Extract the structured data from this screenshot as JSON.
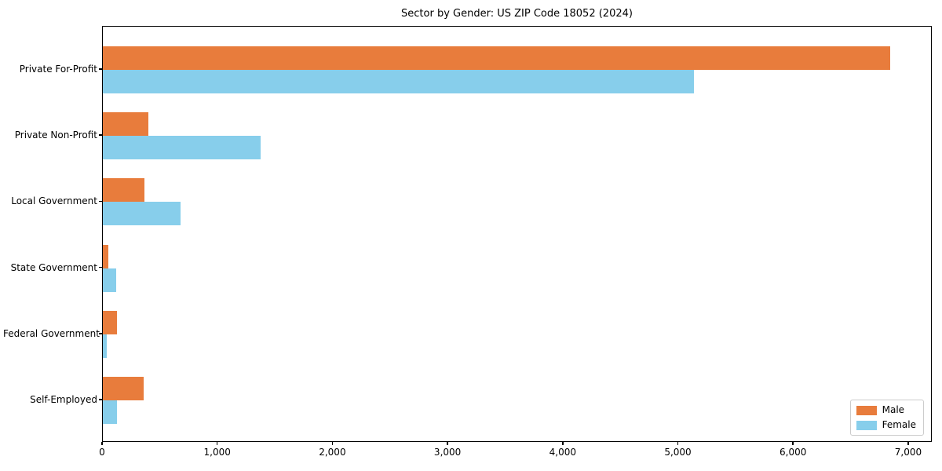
{
  "chart_data": {
    "type": "bar",
    "orientation": "horizontal",
    "title": "Sector by Gender: US ZIP Code 18052 (2024)",
    "categories": [
      "Private For-Profit",
      "Private Non-Profit",
      "Local Government",
      "State Government",
      "Federal Government",
      "Self-Employed"
    ],
    "series": [
      {
        "name": "Male",
        "color": "#E87C3C",
        "values": [
          6850,
          395,
          360,
          48,
          122,
          352
        ]
      },
      {
        "name": "Female",
        "color": "#87CEEB",
        "values": [
          5140,
          1375,
          675,
          115,
          33,
          122
        ]
      }
    ],
    "xlabel": "",
    "ylabel": "",
    "xlim": [
      0,
      7205
    ],
    "x_ticks": [
      0,
      1000,
      2000,
      3000,
      4000,
      5000,
      6000,
      7000
    ],
    "x_tick_labels": [
      "0",
      "1,000",
      "2,000",
      "3,000",
      "4,000",
      "5,000",
      "6,000",
      "7,000"
    ],
    "grid": false,
    "legend": {
      "position": "lower right",
      "entries": [
        "Male",
        "Female"
      ]
    }
  }
}
